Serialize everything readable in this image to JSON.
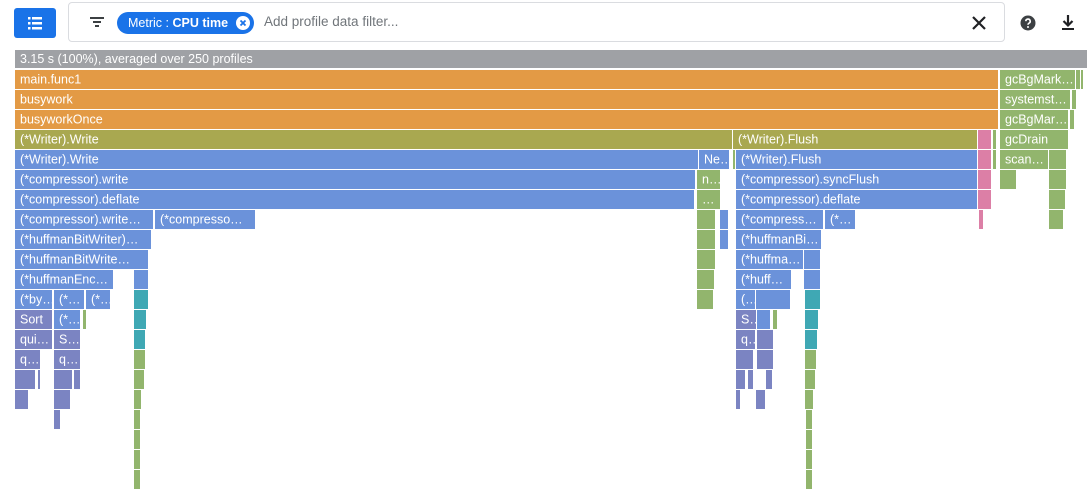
{
  "toolbar": {
    "metric_label": "Metric :",
    "metric_value": "CPU time",
    "placeholder": "Add profile data filter..."
  },
  "flame": {
    "header": "3.15 s (100%), averaged over 250 profiles",
    "frames": [
      "main.func1",
      "gcBgMark…",
      "busywork",
      "systemst…",
      "busyworkOnce",
      "gcBgMar…",
      "(*Writer).Write",
      "(*Writer).Flush",
      "gcDrain",
      "(*Writer).Write",
      "Ne…",
      "(*Writer).Flush",
      "scan…",
      "(*compressor).write",
      "n…",
      "(*compressor).syncFlush",
      "(*compressor).deflate",
      "…",
      "(*compressor).deflate",
      "(*compressor).write…",
      "(*compresso…",
      "(*compress…",
      "(*…",
      "(*huffmanBitWriter)…",
      "(*huffmanBi…",
      "(*huffmanBitWrite…",
      "(*huffma…",
      "(*huffmanEnc…",
      "(*huff…",
      "(*by…",
      "(*…",
      "(*…",
      "(…",
      "Sort",
      "(*…",
      "S…",
      "qui…",
      "S…",
      "q…",
      "q…",
      "q…"
    ]
  }
}
